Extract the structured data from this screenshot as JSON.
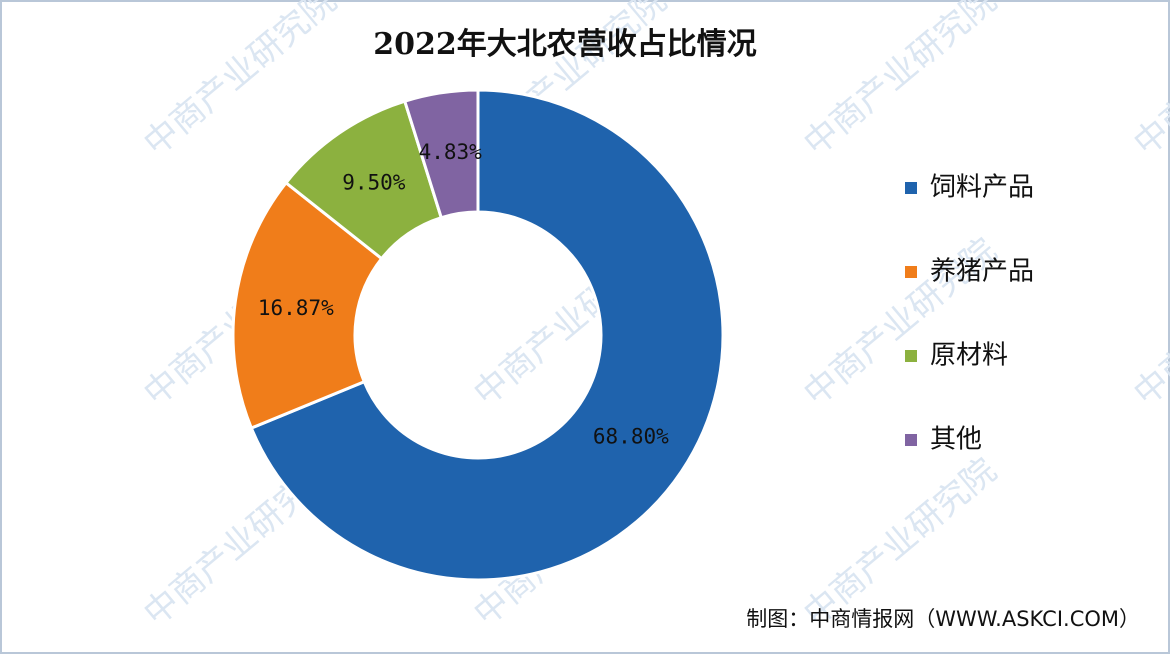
{
  "chart_data": {
    "type": "pie",
    "title": "2022年大北农营收占比情况",
    "categories": [
      "饲料产品",
      "养猪产品",
      "原材料",
      "其他"
    ],
    "values": [
      68.8,
      16.87,
      9.5,
      4.83
    ],
    "value_labels": [
      "68.80%",
      "16.87%",
      "9.50%",
      "4.83%"
    ],
    "colors": [
      "#1f63ad",
      "#f07d1a",
      "#8cb13f",
      "#8064a2"
    ],
    "legend": "right",
    "source": "制图：中商情报网（WWW.ASKCI.COM）",
    "watermark": "中商产业研究院"
  }
}
